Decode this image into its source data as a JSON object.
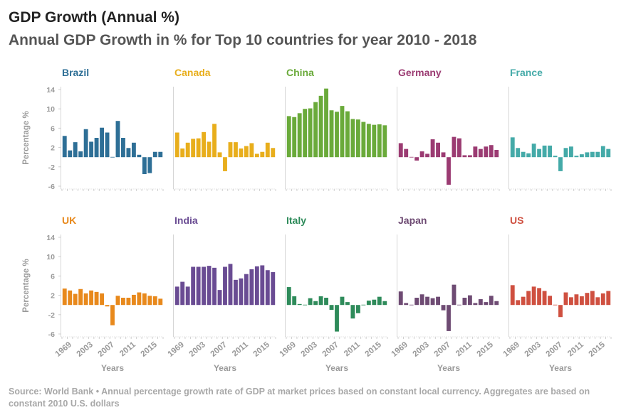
{
  "title": "GDP Growth (Annual %)",
  "subtitle": "Annual GDP Growth in % for Top 10 countries for year 2010 - 2018",
  "source": "Source: World Bank • Annual percentage growth rate of GDP at market prices based on constant local currency. Aggregates are based on constant 2010 U.S. dollars",
  "chart_data": {
    "type": "bar",
    "layout": "small-multiples",
    "xlabel": "Years",
    "ylabel": "Percentage %",
    "ylim": [
      -6,
      14
    ],
    "y_ticks": [
      14,
      10,
      6,
      2,
      -2,
      -6
    ],
    "x_ticks": [
      "1969",
      "2003",
      "2007",
      "2011",
      "2015"
    ],
    "grid": false,
    "panels": [
      {
        "name": "Brazil",
        "color": "#2e6f96",
        "values": [
          4.4,
          1.4,
          3.1,
          1.2,
          5.8,
          3.2,
          4.0,
          6.1,
          5.1,
          -0.1,
          7.5,
          4.0,
          1.9,
          3.0,
          0.5,
          -3.5,
          -3.3,
          1.1,
          1.1
        ]
      },
      {
        "name": "Canada",
        "color": "#e8ae1c",
        "values": [
          5.1,
          1.8,
          3.0,
          3.8,
          3.9,
          5.2,
          3.2,
          6.9,
          1.0,
          -2.9,
          3.1,
          3.1,
          1.8,
          2.3,
          2.9,
          0.7,
          1.1,
          3.0,
          1.9
        ]
      },
      {
        "name": "China",
        "color": "#6aaa3a",
        "values": [
          8.5,
          8.3,
          9.1,
          10.0,
          10.1,
          11.4,
          12.7,
          14.2,
          9.7,
          9.4,
          10.6,
          9.5,
          7.9,
          7.8,
          7.3,
          6.9,
          6.7,
          6.8,
          6.6
        ]
      },
      {
        "name": "Germany",
        "color": "#9b3b72",
        "values": [
          2.9,
          1.7,
          0.0,
          -0.7,
          1.2,
          0.7,
          3.7,
          3.0,
          1.0,
          -5.7,
          4.2,
          3.9,
          0.4,
          0.4,
          2.2,
          1.7,
          2.2,
          2.5,
          1.5
        ]
      },
      {
        "name": "France",
        "color": "#44aaa8",
        "values": [
          4.1,
          1.9,
          1.1,
          0.8,
          2.8,
          1.7,
          2.4,
          2.4,
          0.3,
          -2.9,
          1.9,
          2.2,
          0.3,
          0.6,
          1.0,
          1.1,
          1.1,
          2.3,
          1.7
        ]
      },
      {
        "name": "UK",
        "color": "#e8891c",
        "values": [
          3.4,
          3.0,
          2.3,
          3.3,
          2.4,
          3.0,
          2.7,
          2.4,
          -0.3,
          -4.2,
          1.9,
          1.5,
          1.5,
          2.1,
          2.6,
          2.4,
          1.9,
          1.8,
          1.3
        ]
      },
      {
        "name": "India",
        "color": "#6a4c93",
        "values": [
          3.8,
          4.8,
          3.8,
          7.9,
          7.9,
          7.9,
          8.1,
          7.7,
          3.1,
          7.9,
          8.5,
          5.2,
          5.5,
          6.4,
          7.4,
          8.0,
          8.2,
          7.2,
          6.8
        ]
      },
      {
        "name": "Italy",
        "color": "#2e8b5a",
        "values": [
          3.7,
          1.8,
          0.2,
          0.1,
          1.4,
          0.8,
          1.8,
          1.5,
          -1.0,
          -5.5,
          1.7,
          0.6,
          -2.8,
          -1.7,
          0.1,
          0.9,
          1.1,
          1.7,
          0.8
        ]
      },
      {
        "name": "Japan",
        "color": "#6e4b73",
        "values": [
          2.8,
          0.4,
          0.1,
          1.5,
          2.2,
          1.7,
          1.4,
          1.7,
          -1.1,
          -5.4,
          4.2,
          -0.1,
          1.5,
          2.0,
          0.4,
          1.2,
          0.6,
          1.9,
          0.8
        ]
      },
      {
        "name": "US",
        "color": "#cf5040",
        "values": [
          4.1,
          1.0,
          1.7,
          2.9,
          3.8,
          3.5,
          2.9,
          1.9,
          -0.1,
          -2.5,
          2.6,
          1.6,
          2.2,
          1.8,
          2.5,
          2.9,
          1.6,
          2.4,
          2.9
        ]
      }
    ]
  }
}
